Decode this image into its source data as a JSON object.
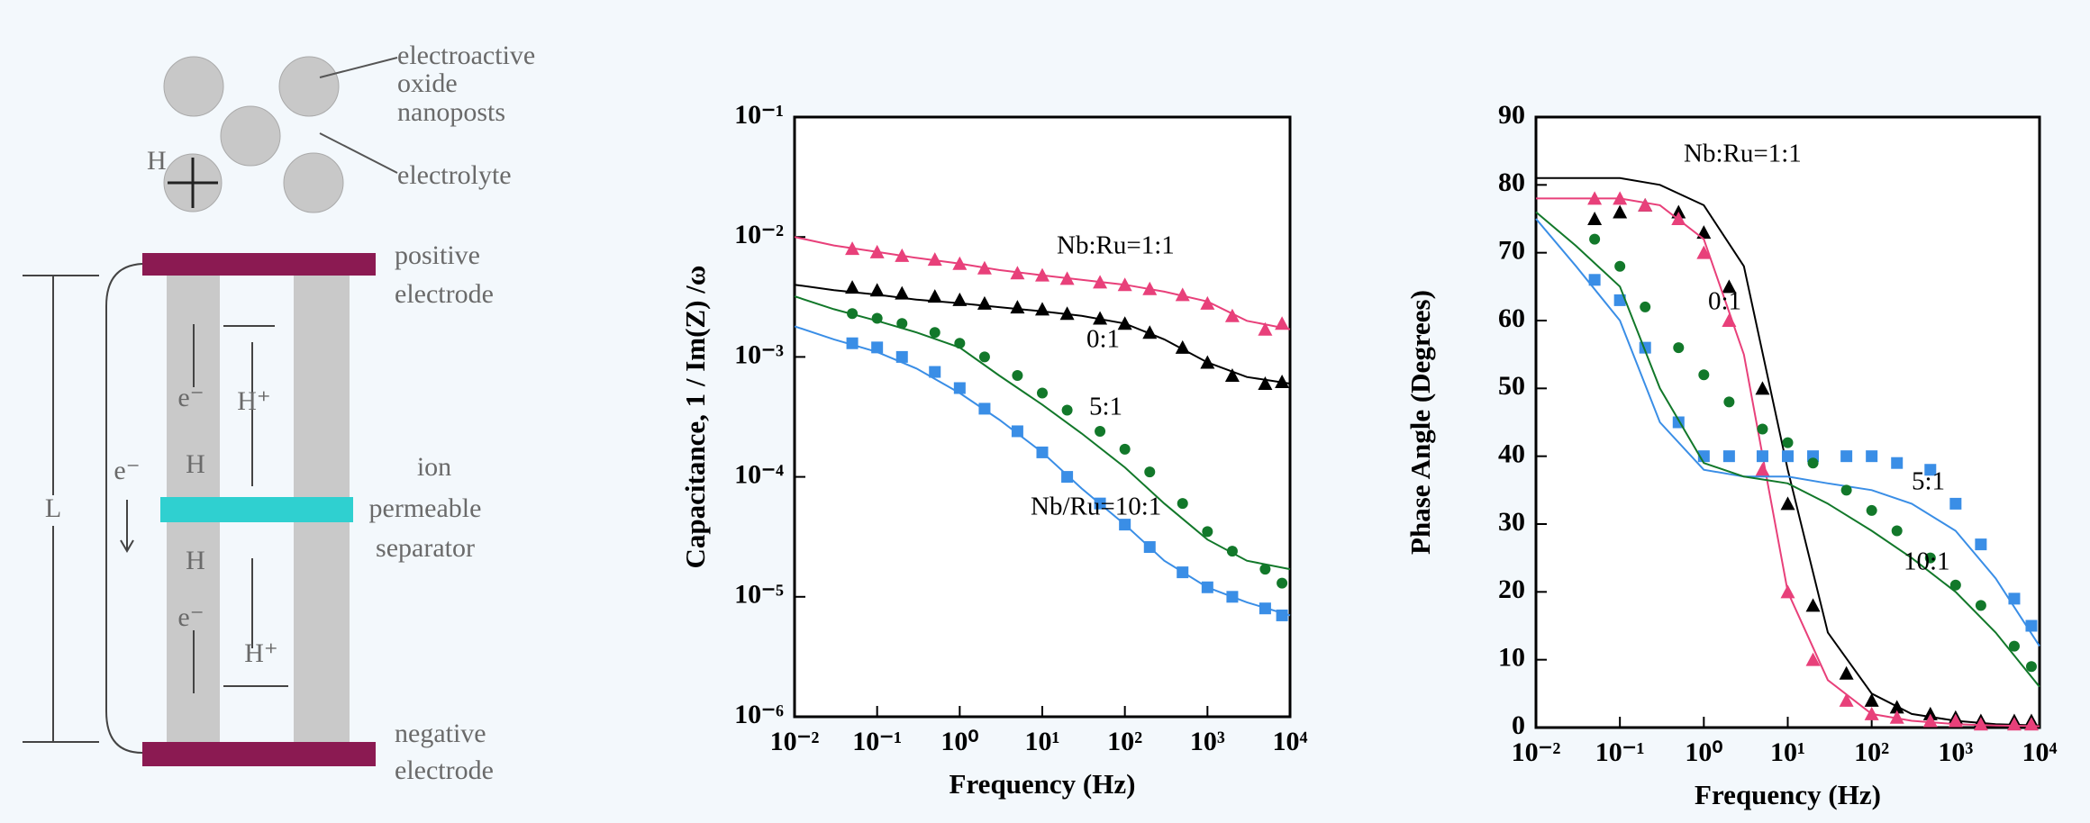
{
  "diagram": {
    "nanoposts_label": [
      "electroactive",
      "oxide",
      "nanoposts"
    ],
    "electrolyte_label": "electrolyte",
    "proton_label": "H",
    "positive_electrode": [
      "positive",
      "electrode"
    ],
    "separator": [
      "ion",
      "permeable",
      "separator"
    ],
    "negative_electrode": [
      "negative",
      "electrode"
    ],
    "length_label": "L",
    "electron_label": "e⁻",
    "inner_labels": [
      "e⁻",
      "H⁺",
      "H",
      "H",
      "e⁻",
      "H⁺"
    ]
  },
  "chart_data": [
    {
      "type": "scatter",
      "x_label": "Frequency (Hz)",
      "y_label": "Capacitance, 1 / Im(Z) /ω",
      "xscale": "log",
      "yscale": "log",
      "xlim": [
        0.01,
        10000
      ],
      "ylim": [
        1e-06,
        0.1
      ],
      "xticks": [
        {
          "value": 0.01,
          "label": "10⁻²"
        },
        {
          "value": 0.1,
          "label": "10⁻¹"
        },
        {
          "value": 1,
          "label": "10⁰"
        },
        {
          "value": 10,
          "label": "10¹"
        },
        {
          "value": 100,
          "label": "10²"
        },
        {
          "value": 1000,
          "label": "10³"
        },
        {
          "value": 10000,
          "label": "10⁴"
        }
      ],
      "yticks": [
        {
          "value": 1e-06,
          "label": "10⁻⁶"
        },
        {
          "value": 1e-05,
          "label": "10⁻⁵"
        },
        {
          "value": 0.0001,
          "label": "10⁻⁴"
        },
        {
          "value": 0.001,
          "label": "10⁻³"
        },
        {
          "value": 0.01,
          "label": "10⁻²"
        },
        {
          "value": 0.1,
          "label": "10⁻¹"
        }
      ],
      "x": [
        0.05,
        0.1,
        0.2,
        0.5,
        1,
        2,
        5,
        10,
        20,
        50,
        100,
        200,
        500,
        1000,
        2000,
        5000,
        8000
      ],
      "fit_x": [
        0.01,
        0.03,
        0.1,
        0.3,
        1,
        3,
        10,
        30,
        100,
        300,
        1000,
        3000,
        10000
      ],
      "series": [
        {
          "name": "Nb:Ru=1:1",
          "color": "#e8407a",
          "marker": "triangle",
          "values": [
            0.008,
            0.0075,
            0.007,
            0.0065,
            0.006,
            0.0055,
            0.005,
            0.0048,
            0.0045,
            0.0042,
            0.004,
            0.0037,
            0.0033,
            0.0028,
            0.0022,
            0.0017,
            0.0019
          ],
          "fit_values": [
            0.01,
            0.0085,
            0.0075,
            0.0067,
            0.006,
            0.0053,
            0.0048,
            0.0044,
            0.004,
            0.0035,
            0.0029,
            0.002,
            0.0017
          ]
        },
        {
          "name": "0:1",
          "color": "#000000",
          "marker": "triangle",
          "values": [
            0.0038,
            0.0036,
            0.0034,
            0.0032,
            0.003,
            0.0028,
            0.0026,
            0.0025,
            0.0023,
            0.0021,
            0.0019,
            0.0016,
            0.0012,
            0.0009,
            0.0007,
            0.0006,
            0.00062
          ],
          "fit_values": [
            0.004,
            0.0036,
            0.0033,
            0.003,
            0.0028,
            0.0026,
            0.0024,
            0.0022,
            0.0019,
            0.0014,
            0.0009,
            0.00068,
            0.0006
          ]
        },
        {
          "name": "5:1",
          "color": "#12782a",
          "marker": "circle",
          "values": [
            0.0023,
            0.0021,
            0.0019,
            0.0016,
            0.0013,
            0.001,
            0.0007,
            0.0005,
            0.00036,
            0.00024,
            0.00017,
            0.00011,
            6e-05,
            3.5e-05,
            2.4e-05,
            1.7e-05,
            1.3e-05
          ],
          "fit_values": [
            0.0032,
            0.0025,
            0.002,
            0.0016,
            0.0012,
            0.0007,
            0.0004,
            0.00023,
            0.00012,
            6e-05,
            3e-05,
            2e-05,
            1.7e-05
          ]
        },
        {
          "name": "Nb/Ru=10:1",
          "color": "#3a8ee6",
          "marker": "square",
          "values": [
            0.0013,
            0.0012,
            0.001,
            0.00075,
            0.00055,
            0.00037,
            0.00024,
            0.00016,
            0.0001,
            6e-05,
            4e-05,
            2.6e-05,
            1.6e-05,
            1.2e-05,
            1e-05,
            8e-06,
            7e-06
          ],
          "fit_values": [
            0.0018,
            0.0014,
            0.0011,
            0.0008,
            0.0005,
            0.0003,
            0.00016,
            8e-05,
            4e-05,
            2e-05,
            1.2e-05,
            9e-06,
            7e-06
          ]
        }
      ]
    },
    {
      "type": "scatter",
      "x_label": "Frequency (Hz)",
      "y_label": "Phase Angle (Degrees)",
      "xscale": "log",
      "yscale": "linear",
      "xlim": [
        0.01,
        10000
      ],
      "ylim": [
        0,
        90
      ],
      "xticks": [
        {
          "value": 0.01,
          "label": "10⁻²"
        },
        {
          "value": 0.1,
          "label": "10⁻¹"
        },
        {
          "value": 1,
          "label": "10⁰"
        },
        {
          "value": 10,
          "label": "10¹"
        },
        {
          "value": 100,
          "label": "10²"
        },
        {
          "value": 1000,
          "label": "10³"
        },
        {
          "value": 10000,
          "label": "10⁴"
        }
      ],
      "yticks": [
        0,
        10,
        20,
        30,
        40,
        50,
        60,
        70,
        80,
        90
      ],
      "x": [
        0.05,
        0.1,
        0.2,
        0.5,
        1,
        2,
        5,
        10,
        20,
        50,
        100,
        200,
        500,
        1000,
        2000,
        5000,
        8000
      ],
      "fit_x": [
        0.01,
        0.03,
        0.1,
        0.3,
        1,
        3,
        10,
        30,
        100,
        300,
        1000,
        3000,
        10000
      ],
      "series": [
        {
          "name": "Nb:Ru=1:1",
          "color": "#000000",
          "marker": "triangle",
          "values": [
            75,
            76,
            77,
            76,
            73,
            65,
            50,
            33,
            18,
            8,
            4,
            3,
            2,
            1.5,
            1,
            1,
            1
          ],
          "fit_values": [
            81,
            81,
            81,
            80,
            77,
            68,
            38,
            14,
            5,
            2,
            1,
            0.5,
            0.3
          ]
        },
        {
          "name": "0:1",
          "color": "#e8407a",
          "marker": "triangle",
          "values": [
            78,
            78,
            77,
            75,
            70,
            60,
            38,
            20,
            10,
            4,
            2,
            1.5,
            1,
            1,
            0.5,
            0.5,
            0.5
          ],
          "fit_values": [
            78,
            78,
            78,
            77,
            72,
            55,
            20,
            7,
            2,
            1,
            0.5,
            0.3,
            0.2
          ]
        },
        {
          "name": "5:1",
          "color": "#3a8ee6",
          "marker": "square",
          "values": [
            66,
            63,
            56,
            45,
            40,
            40,
            40,
            40,
            40,
            40,
            40,
            39,
            38,
            33,
            27,
            19,
            15
          ],
          "fit_values": [
            75,
            68,
            60,
            45,
            38,
            37,
            37,
            36,
            35,
            33,
            29,
            22,
            12
          ]
        },
        {
          "name": "10:1",
          "color": "#12782a",
          "marker": "circle",
          "values": [
            72,
            68,
            62,
            56,
            52,
            48,
            44,
            42,
            39,
            35,
            32,
            29,
            25,
            21,
            18,
            12,
            9
          ],
          "fit_values": [
            76,
            71,
            65,
            50,
            39,
            37,
            36,
            33,
            29,
            25,
            20,
            14,
            6
          ]
        }
      ]
    }
  ]
}
